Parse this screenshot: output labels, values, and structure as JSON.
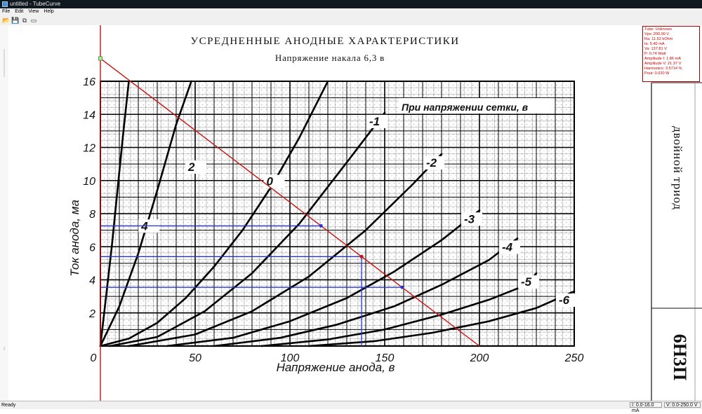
{
  "window": {
    "title": "untitled - TubeCurve"
  },
  "menu": [
    "File",
    "Edit",
    "View",
    "Help"
  ],
  "toolbar": [
    {
      "name": "open-icon",
      "glyph": "📂"
    },
    {
      "name": "save-icon",
      "glyph": "💾"
    },
    {
      "name": "copy-icon",
      "glyph": "⧉"
    },
    {
      "name": "window-icon",
      "glyph": "▭"
    }
  ],
  "scan": {
    "title": "УСРЕДНЕННЫЕ АНОДНЫЕ ХАРАКТЕРИСТИКИ",
    "subtitle": "Напряжение накала 6,3 в",
    "legend": "При напряжении сетки, в",
    "ylabel": "Ток анода, ма",
    "xlabel": "Напряжение анода, в",
    "side_title": "двойной триод",
    "side_code": "6Н3П"
  },
  "chart_data": {
    "type": "line",
    "x_ticks": [
      "0",
      "50",
      "100",
      "150",
      "200",
      "250"
    ],
    "y_ticks": [
      "2",
      "4",
      "6",
      "8",
      "10",
      "12",
      "14",
      "16"
    ],
    "xlim": [
      0,
      250
    ],
    "ylim": [
      0,
      16
    ],
    "grid": true,
    "series": [
      {
        "name": "4",
        "x": [
          0,
          3,
          6,
          9,
          12,
          15
        ],
        "y": [
          0,
          3,
          6,
          9.4,
          12.8,
          16
        ]
      },
      {
        "name": "2",
        "x": [
          0,
          10,
          20,
          30,
          40,
          48
        ],
        "y": [
          0,
          2.4,
          5.6,
          9.4,
          13.4,
          16
        ]
      },
      {
        "name": "0",
        "x": [
          0,
          15,
          30,
          45,
          60,
          75,
          90,
          105,
          120
        ],
        "y": [
          0,
          0.45,
          1.4,
          2.9,
          4.8,
          7.0,
          9.6,
          12.6,
          16
        ]
      },
      {
        "name": "-1",
        "x": [
          5,
          30,
          55,
          80,
          105,
          130,
          150
        ],
        "y": [
          0,
          0.55,
          2.1,
          4.4,
          7.4,
          11.1,
          14.1
        ]
      },
      {
        "name": "-2",
        "x": [
          15,
          50,
          80,
          110,
          140,
          165,
          180
        ],
        "y": [
          0,
          0.7,
          2.1,
          4.2,
          7.0,
          9.8,
          11.6
        ]
      },
      {
        "name": "-3",
        "x": [
          35,
          70,
          100,
          130,
          155,
          180,
          200
        ],
        "y": [
          0,
          0.5,
          1.5,
          2.9,
          4.5,
          6.4,
          8.2
        ]
      },
      {
        "name": "-4",
        "x": [
          60,
          95,
          125,
          155,
          180,
          205,
          220
        ],
        "y": [
          0,
          0.5,
          1.3,
          2.4,
          3.7,
          5.2,
          6.5
        ]
      },
      {
        "name": "-5",
        "x": [
          85,
          120,
          150,
          180,
          205,
          225,
          230
        ],
        "y": [
          0,
          0.4,
          1.0,
          1.9,
          2.8,
          3.7,
          4.4
        ]
      },
      {
        "name": "-6",
        "x": [
          110,
          145,
          175,
          205,
          230,
          250
        ],
        "y": [
          0,
          0.3,
          0.8,
          1.5,
          2.3,
          3.3
        ]
      }
    ],
    "load_line": {
      "x": [
        0,
        200
      ],
      "y": [
        17.38,
        0
      ]
    },
    "operating_point": {
      "x": 137.81,
      "y": 5.4
    },
    "swing_points": [
      {
        "x": 116.4,
        "y": 7.4
      },
      {
        "x": 159.2,
        "y": 3.6
      }
    ]
  },
  "info": {
    "tube": "Tube: Unknown",
    "vps": "Vps: 200.00 V",
    "ra": "Ra: 11.52 kOhm",
    "ia": "Ia: 5.40 mA",
    "va": "Va: 137.81 V",
    "p": "P: 0.74 Watt",
    "amp_i": "Amplitude I: 1.86 mA",
    "amp_v": "Amplitude V: 21.37 V",
    "harm": "Harmonics: 3.5714 %",
    "pout": "Pout: 0.020 W"
  },
  "status": {
    "text": "Ready",
    "range_i": "I: 0.0-16.0 mA",
    "range_v": "V: 0.0-250.0 V"
  }
}
